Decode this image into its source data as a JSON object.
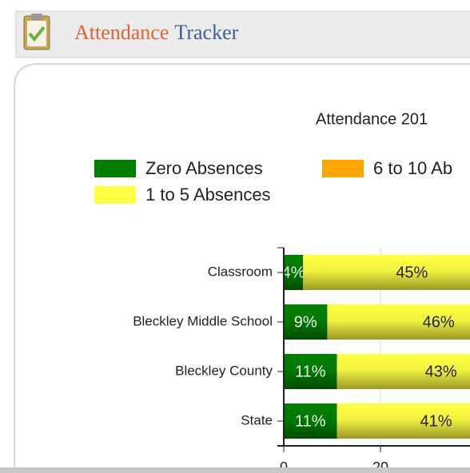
{
  "header": {
    "title_part1": "Attendance",
    "title_part2": "Tracker"
  },
  "chart_data": {
    "type": "bar",
    "orientation": "horizontal",
    "stacked": true,
    "title": "Attendance 201",
    "categories": [
      "Classroom",
      "Bleckley Middle School",
      "Bleckley County",
      "State"
    ],
    "series": [
      {
        "name": "Zero Absences",
        "color": "#008000",
        "values": [
          4,
          9,
          11,
          11
        ],
        "value_labels": [
          "4%",
          "9%",
          "11%",
          "11%"
        ]
      },
      {
        "name": "1 to 5 Absences",
        "color": "#ffff44",
        "values": [
          45,
          46,
          43,
          41
        ],
        "value_labels": [
          "45%",
          "46%",
          "43%",
          "41%"
        ]
      },
      {
        "name": "6 to 10 Ab",
        "color": "#ffa500"
      }
    ],
    "xlim": [
      0,
      100
    ],
    "xticks": [
      0,
      20
    ],
    "grid": true
  }
}
